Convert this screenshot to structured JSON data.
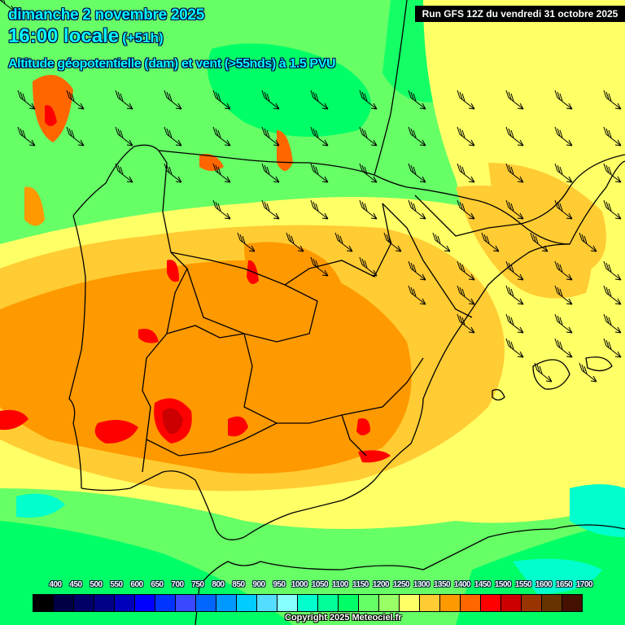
{
  "header": {
    "date": "dimanche 2 novembre 2025",
    "time": "16:00 locale",
    "lead": "(+51h)",
    "parameter": "Altitude géopotentielle (dam) et vent (>55nds) à 1.5 PVU",
    "run": "Run GFS 12Z du vendredi 31 octobre 2025"
  },
  "legend": {
    "labels": [
      "400",
      "450",
      "500",
      "550",
      "600",
      "650",
      "700",
      "750",
      "800",
      "850",
      "900",
      "950",
      "1000",
      "1050",
      "1100",
      "1150",
      "1200",
      "1250",
      "1300",
      "1350",
      "1400",
      "1450",
      "1500",
      "1550",
      "1600",
      "1650",
      "1700"
    ],
    "colors": [
      "#000000",
      "#000044",
      "#000066",
      "#000088",
      "#0000bb",
      "#0000ff",
      "#0033ff",
      "#3a48ff",
      "#0066ff",
      "#0099ff",
      "#00ccff",
      "#55ddff",
      "#88ffff",
      "#00ffcc",
      "#00ff99",
      "#00ff66",
      "#66ff66",
      "#99ff66",
      "#ffff66",
      "#ffcc33",
      "#ff9900",
      "#ff6600",
      "#ff0000",
      "#cc0000",
      "#993300",
      "#663300",
      "#441100"
    ]
  },
  "footer": {
    "copyright": "Copyright 2025 Meteociel.fr"
  },
  "map": {
    "region": "Iberian Peninsula, Bay of Biscay, Balearic Islands, North Africa",
    "field": "geopotential height at 1.5 PVU (dam)",
    "wind_threshold": ">55nds",
    "dominant_ranges": [
      {
        "area": "Iberian interior",
        "range": "1350-1450"
      },
      {
        "area": "Bay of Biscay / north",
        "range": "1100-1250"
      },
      {
        "area": "North Africa / south",
        "range": "1050-1200"
      },
      {
        "area": "Andalusia maxima",
        "range": "1450-1550"
      }
    ],
    "wind_barbs": "NW flow over northern and eastern Spain, Mediterranean, and Balearics"
  }
}
